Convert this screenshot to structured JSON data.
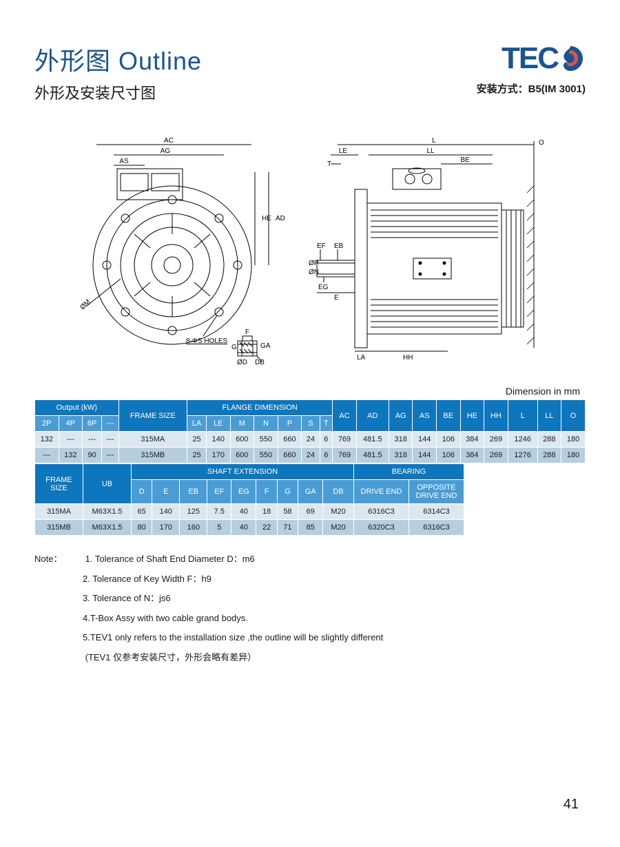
{
  "header": {
    "title_cn_en": "外形图 Outline",
    "subtitle": "外形及安装尺寸图",
    "logo_text": "TEC",
    "mounting_label": "安装方式：",
    "mounting_value": "B5(IM 3001)"
  },
  "colors": {
    "brand_blue": "#1a5490",
    "header_primary": "#0e76bc",
    "header_sub": "#4a9dd4",
    "row_light": "#dce8f0",
    "row_dark": "#b5cfe0",
    "swirl_outer": "#1a5490",
    "swirl_inner": "#d9534f"
  },
  "diagram": {
    "front_labels": [
      "AC",
      "AG",
      "AS",
      "HE",
      "AD",
      "ØM",
      "8-ΦS HOLES"
    ],
    "side_labels": [
      "L",
      "O",
      "LE",
      "LL",
      "T",
      "BE",
      "EF",
      "EB",
      "ØP",
      "ØN",
      "EG",
      "E",
      "LA",
      "HH"
    ],
    "shaft_labels": [
      "F",
      "G",
      "GA",
      "ØD",
      "DB"
    ]
  },
  "dimension_unit": "Dimension in mm",
  "table1": {
    "group_headers": {
      "output": "Output (kW)",
      "frame": "FRAME SIZE",
      "flange": "FLANGE DIMENSION",
      "ac": "AC",
      "ad": "AD",
      "ag": "AG",
      "as": "AS",
      "be": "BE",
      "he": "HE",
      "hh": "HH",
      "l": "L",
      "ll": "LL",
      "o": "O"
    },
    "sub_headers": [
      "2P",
      "4P",
      "6P",
      "---",
      "LA",
      "LE",
      "M",
      "N",
      "P",
      "S",
      "T"
    ],
    "rows": [
      [
        "132",
        "---",
        "---",
        "---",
        "315MA",
        "25",
        "140",
        "600",
        "550",
        "660",
        "24",
        "6",
        "769",
        "481.5",
        "318",
        "144",
        "106",
        "384",
        "269",
        "1246",
        "288",
        "180"
      ],
      [
        "---",
        "132",
        "90",
        "---",
        "315MB",
        "25",
        "170",
        "600",
        "550",
        "660",
        "24",
        "6",
        "769",
        "481.5",
        "318",
        "144",
        "106",
        "384",
        "269",
        "1276",
        "288",
        "180"
      ]
    ]
  },
  "table2": {
    "group_headers": {
      "frame": "FRAME SIZE",
      "ub": "UB",
      "shaft": "SHAFT EXTENSION",
      "bearing": "BEARING"
    },
    "sub_headers": [
      "D",
      "E",
      "EB",
      "EF",
      "EG",
      "F",
      "G",
      "GA",
      "DB",
      "DRIVE END",
      "OPPOSITE DRIVE END"
    ],
    "rows": [
      [
        "315MA",
        "M63X1.5",
        "65",
        "140",
        "125",
        "7.5",
        "40",
        "18",
        "58",
        "69",
        "M20",
        "6316C3",
        "6314C3"
      ],
      [
        "315MB",
        "M63X1.5",
        "80",
        "170",
        "160",
        "5",
        "40",
        "22",
        "71",
        "85",
        "M20",
        "6320C3",
        "6316C3"
      ]
    ]
  },
  "notes": {
    "label": "Note：",
    "items": [
      "1. Tolerance  of  Shaft  End  Diameter  D：m6",
      "2. Tolerance  of  Key Width  F：h9",
      "3. Tolerance  of  N：js6",
      "4.T-Box Assy with two cable grand bodys.",
      "5.TEV1 only refers  to the installation size ,the outline will be slightly different",
      "  (TEV1 仅参考安装尺寸，外形会略有差异）"
    ]
  },
  "page_number": "41"
}
